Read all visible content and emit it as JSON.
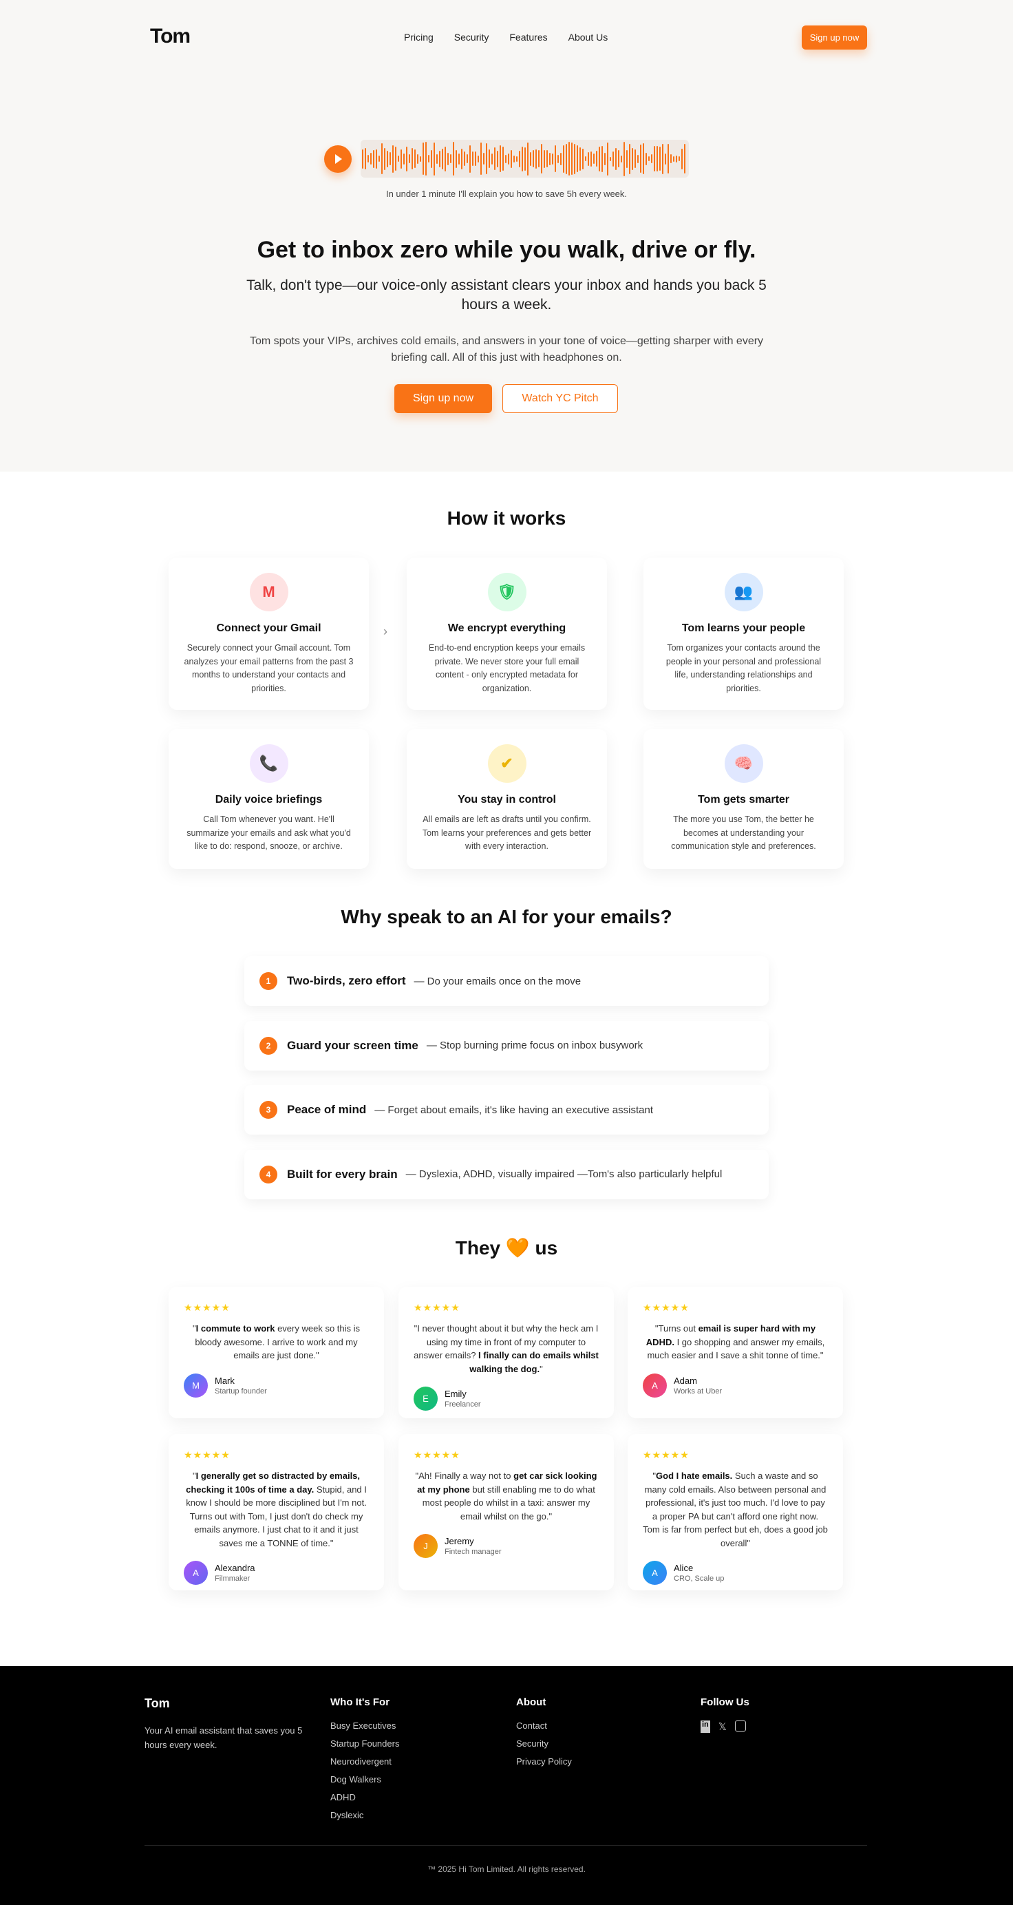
{
  "nav": {
    "logo": "Tom",
    "links": [
      "Pricing",
      "Security",
      "Features",
      "About Us"
    ],
    "signup": "Sign up now"
  },
  "hero": {
    "caption": "In under 1 minute I'll explain you how to save 5h every week.",
    "title": "Get to inbox zero while you walk, drive or fly.",
    "subtitle": "Talk, don't type—our voice-only assistant clears your inbox and hands you back 5 hours a week.",
    "paragraph": "Tom spots your VIPs, archives cold emails, and answers in your tone of voice—getting sharper with every briefing call. All of this just with headphones on.",
    "primary": "Sign up now",
    "secondary": "Watch YC Pitch",
    "accent": "#f97316"
  },
  "how": {
    "title": "How it works",
    "cards": [
      {
        "icon": "gmail-icon",
        "glyph": "M",
        "title": "Connect your Gmail",
        "text": "Securely connect your Gmail account. Tom analyzes your email patterns from the past 3 months to understand your contacts and priorities."
      },
      {
        "icon": "shield-lock-icon",
        "glyph": "🛡",
        "title": "We encrypt everything",
        "text": "End-to-end encryption keeps your emails private. We never store your full email content - only encrypted metadata for organization."
      },
      {
        "icon": "people-icon",
        "glyph": "👥",
        "title": "Tom learns your people",
        "text": "Tom organizes your contacts around the people in your personal and professional life, understanding relationships and priorities."
      },
      {
        "icon": "phone-icon",
        "glyph": "📞",
        "title": "Daily voice briefings",
        "text": "Call Tom whenever you want. He'll summarize your emails and ask what you'd like to do: respond, snooze, or archive."
      },
      {
        "icon": "check-icon",
        "glyph": "✔",
        "title": "You stay in control",
        "text": "All emails are left as drafts until you confirm. Tom learns your preferences and gets better with every interaction."
      },
      {
        "icon": "brain-icon",
        "glyph": "🧠",
        "title": "Tom gets smarter",
        "text": "The more you use Tom, the better he becomes at understanding your communication style and preferences."
      }
    ]
  },
  "why": {
    "title": "Why speak to an AI for your emails?",
    "items": [
      {
        "n": "1",
        "title": "Two-birds, zero effort",
        "desc": "— Do your emails once on the move"
      },
      {
        "n": "2",
        "title": "Guard your screen time",
        "desc": "— Stop burning prime focus on inbox busywork"
      },
      {
        "n": "3",
        "title": "Peace of mind",
        "desc": "— Forget about emails, it's like having an executive assistant"
      },
      {
        "n": "4",
        "title": "Built for every brain",
        "desc": "— Dyslexia, ADHD, visually impaired —Tom's also particularly helpful"
      }
    ]
  },
  "testimonials": {
    "title_a": "They",
    "title_heart": "🧡",
    "title_b": "us",
    "stars": "★★★★★",
    "items": [
      {
        "parts": [
          [
            "\"",
            0
          ],
          [
            "I commute to work",
            1
          ],
          [
            " every week so this is bloody awesome. I arrive to work and my emails are just done.\"",
            0
          ]
        ],
        "name": "Mark",
        "role": "Startup founder",
        "initial": "M",
        "color": "linear-gradient(135deg,#3b82f6,#a855f7)"
      },
      {
        "parts": [
          [
            "\"I never thought about it but why the heck am I using my time in front of my computer to answer emails? ",
            0
          ],
          [
            "I finally can do emails whilst walking the dog.",
            1
          ],
          [
            "\"",
            0
          ]
        ],
        "name": "Emily",
        "role": "Freelancer",
        "initial": "E",
        "color": "linear-gradient(135deg,#22c55e,#10b981)"
      },
      {
        "parts": [
          [
            "\"Turns out ",
            0
          ],
          [
            "email is super hard with my ADHD.",
            1
          ],
          [
            " I go shopping and answer my emails, much easier and I save a shit tonne of time.\"",
            0
          ]
        ],
        "name": "Adam",
        "role": "Works at Uber",
        "initial": "A",
        "color": "linear-gradient(135deg,#ef4444,#ec4899)"
      },
      {
        "parts": [
          [
            "\"",
            0
          ],
          [
            "I generally get so distracted by emails, checking it 100s of time a day.",
            1
          ],
          [
            " Stupid, and I know I should be more disciplined but I'm not. Turns out with Tom, I just don't do check my emails anymore. I just chat to it and it just saves me a TONNE of time.\"",
            0
          ]
        ],
        "name": "Alexandra",
        "role": "Filmmaker",
        "initial": "A",
        "color": "linear-gradient(135deg,#a855f7,#6366f1)"
      },
      {
        "parts": [
          [
            "\"Ah! Finally a way not to ",
            0
          ],
          [
            "get car sick looking at my phone",
            1
          ],
          [
            " but still enabling me to do what most people do whilst in a taxi: answer my email whilst on the go.\"",
            0
          ]
        ],
        "name": "Jeremy",
        "role": "Fintech manager",
        "initial": "J",
        "color": "linear-gradient(135deg,#f97316,#eab308)"
      },
      {
        "parts": [
          [
            "\"",
            0
          ],
          [
            "God I hate emails.",
            1
          ],
          [
            " Such a waste and so many cold emails. Also between personal and professional, it's just too much. I'd love to pay a proper PA but can't afford one right now. Tom is far from perfect but eh, does a good job overall\"",
            0
          ]
        ],
        "name": "Alice",
        "role": "CRO, Scale up",
        "initial": "A",
        "color": "linear-gradient(135deg,#0ea5e9,#3b82f6)"
      }
    ]
  },
  "footer": {
    "brand": "Tom",
    "tagline": "Your AI email assistant that saves you 5 hours every week.",
    "cols": [
      {
        "title": "Who It's For",
        "links": [
          "Busy Executives",
          "Startup Founders",
          "Neurodivergent",
          "Dog Walkers",
          "ADHD",
          "Dyslexic"
        ]
      },
      {
        "title": "About",
        "links": [
          "Contact",
          "Security",
          "Privacy Policy"
        ]
      }
    ],
    "follow": "Follow Us",
    "social": [
      "linkedin-icon",
      "x-icon",
      "instagram-icon"
    ],
    "copyright": "™ 2025 Hi Tom Limited. All rights reserved."
  }
}
